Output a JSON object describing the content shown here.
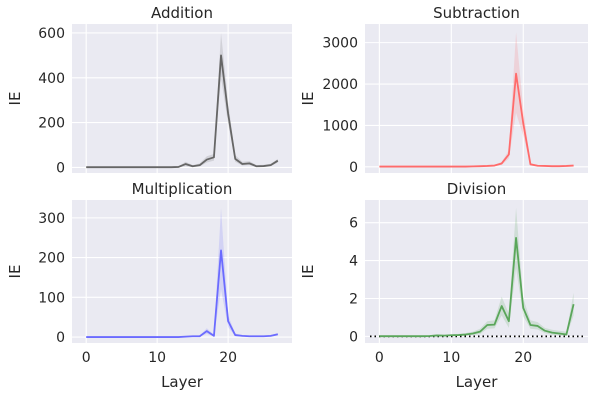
{
  "figure": {
    "colors": {
      "background": "#ffffff",
      "plot_background": "#eaeaf2",
      "grid": "#ffffff",
      "baseline_dotted": "#000000"
    }
  },
  "chart_data": [
    {
      "type": "line",
      "title": "Addition",
      "xlabel": "",
      "ylabel": "IE",
      "xlim": [
        -2,
        29
      ],
      "ylim": [
        -25,
        640
      ],
      "xticks": [
        0,
        10,
        20
      ],
      "yticks": [
        0,
        200,
        400,
        600
      ],
      "x_tick_labels_shown": false,
      "grid": true,
      "color": "#666666",
      "x": [
        0,
        1,
        2,
        3,
        4,
        5,
        6,
        7,
        8,
        9,
        10,
        11,
        12,
        13,
        14,
        15,
        16,
        17,
        18,
        19,
        20,
        21,
        22,
        23,
        24,
        25,
        26,
        27
      ],
      "values": [
        1,
        1,
        1,
        1,
        1,
        1,
        1,
        1,
        1,
        1,
        1,
        1,
        1,
        2,
        15,
        5,
        10,
        35,
        45,
        500,
        240,
        38,
        15,
        18,
        5,
        6,
        10,
        30
      ],
      "band_upper": [
        2,
        2,
        2,
        2,
        2,
        2,
        2,
        2,
        2,
        2,
        2,
        2,
        2,
        4,
        25,
        10,
        18,
        50,
        60,
        600,
        290,
        55,
        25,
        28,
        10,
        12,
        16,
        38
      ],
      "band_lower": [
        0,
        0,
        0,
        0,
        0,
        0,
        0,
        0,
        0,
        0,
        0,
        0,
        0,
        0,
        5,
        1,
        4,
        22,
        30,
        400,
        195,
        25,
        8,
        10,
        1,
        2,
        5,
        22
      ],
      "baseline": null
    },
    {
      "type": "line",
      "title": "Subtraction",
      "xlabel": "",
      "ylabel": "IE",
      "xlim": [
        -2,
        29
      ],
      "ylim": [
        -150,
        3450
      ],
      "xticks": [
        0,
        10,
        20
      ],
      "yticks": [
        0,
        1000,
        2000,
        3000
      ],
      "x_tick_labels_shown": false,
      "grid": true,
      "color": "#ff6b6b",
      "x": [
        0,
        1,
        2,
        3,
        4,
        5,
        6,
        7,
        8,
        9,
        10,
        11,
        12,
        13,
        14,
        15,
        16,
        17,
        18,
        19,
        20,
        21,
        22,
        23,
        24,
        25,
        26,
        27
      ],
      "values": [
        5,
        5,
        5,
        5,
        5,
        5,
        5,
        5,
        5,
        5,
        5,
        5,
        5,
        10,
        15,
        20,
        30,
        80,
        300,
        2250,
        1050,
        60,
        25,
        20,
        15,
        15,
        20,
        30
      ],
      "band_upper": [
        8,
        8,
        8,
        8,
        8,
        8,
        8,
        8,
        8,
        8,
        8,
        8,
        8,
        15,
        22,
        30,
        45,
        120,
        400,
        3250,
        1400,
        90,
        40,
        30,
        22,
        22,
        30,
        40
      ],
      "band_lower": [
        2,
        2,
        2,
        2,
        2,
        2,
        2,
        2,
        2,
        2,
        2,
        2,
        2,
        5,
        8,
        10,
        15,
        45,
        200,
        1300,
        750,
        35,
        12,
        10,
        8,
        8,
        10,
        20
      ],
      "baseline": null
    },
    {
      "type": "line",
      "title": "Multiplication",
      "xlabel": "Layer",
      "ylabel": "IE",
      "xlim": [
        -2,
        29
      ],
      "ylim": [
        -15,
        345
      ],
      "xticks": [
        0,
        10,
        20
      ],
      "yticks": [
        0,
        100,
        200,
        300
      ],
      "x_tick_labels_shown": true,
      "grid": true,
      "color": "#6b6bff",
      "x": [
        0,
        1,
        2,
        3,
        4,
        5,
        6,
        7,
        8,
        9,
        10,
        11,
        12,
        13,
        14,
        15,
        16,
        17,
        18,
        19,
        20,
        21,
        22,
        23,
        24,
        25,
        26,
        27
      ],
      "values": [
        0,
        0,
        0,
        0,
        0,
        0,
        0,
        0,
        0,
        0,
        0,
        0,
        0,
        0,
        1,
        2,
        2,
        15,
        3,
        218,
        40,
        5,
        3,
        2,
        2,
        2,
        3,
        7
      ],
      "band_upper": [
        1,
        1,
        1,
        1,
        1,
        1,
        1,
        1,
        1,
        1,
        1,
        1,
        1,
        1,
        2,
        3,
        4,
        22,
        6,
        325,
        55,
        9,
        5,
        4,
        3,
        3,
        5,
        10
      ],
      "band_lower": [
        0,
        0,
        0,
        0,
        0,
        0,
        0,
        0,
        0,
        0,
        0,
        0,
        0,
        0,
        0,
        1,
        1,
        8,
        1,
        120,
        25,
        2,
        1,
        1,
        1,
        1,
        1,
        4
      ],
      "baseline": null
    },
    {
      "type": "line",
      "title": "Division",
      "xlabel": "Layer",
      "ylabel": "IE",
      "xlim": [
        -2,
        29
      ],
      "ylim": [
        -0.35,
        7.2
      ],
      "xticks": [
        0,
        10,
        20
      ],
      "yticks": [
        0,
        2,
        4,
        6
      ],
      "x_tick_labels_shown": true,
      "grid": true,
      "color": "#5aa65a",
      "x": [
        0,
        1,
        2,
        3,
        4,
        5,
        6,
        7,
        8,
        9,
        10,
        11,
        12,
        13,
        14,
        15,
        16,
        17,
        18,
        19,
        20,
        21,
        22,
        23,
        24,
        25,
        26,
        27
      ],
      "values": [
        0.01,
        0.01,
        0.01,
        0.01,
        0.01,
        0.01,
        0.01,
        0.02,
        0.05,
        0.04,
        0.06,
        0.07,
        0.1,
        0.15,
        0.25,
        0.6,
        0.62,
        1.6,
        0.8,
        5.2,
        1.5,
        0.6,
        0.55,
        0.3,
        0.2,
        0.15,
        0.1,
        1.7
      ],
      "band_upper": [
        0.05,
        0.05,
        0.05,
        0.05,
        0.05,
        0.05,
        0.05,
        0.06,
        0.1,
        0.09,
        0.12,
        0.13,
        0.18,
        0.25,
        0.4,
        0.8,
        0.85,
        2.1,
        1.2,
        6.8,
        2.0,
        0.85,
        0.75,
        0.45,
        0.35,
        0.3,
        0.25,
        2.3
      ],
      "band_lower": [
        0,
        0,
        0,
        0,
        0,
        0,
        0,
        0,
        0.01,
        0.01,
        0.02,
        0.02,
        0.04,
        0.07,
        0.12,
        0.4,
        0.42,
        1.1,
        0.45,
        3.6,
        1.05,
        0.4,
        0.36,
        0.17,
        0.08,
        0.05,
        0.02,
        1.1
      ],
      "baseline": 0
    }
  ]
}
